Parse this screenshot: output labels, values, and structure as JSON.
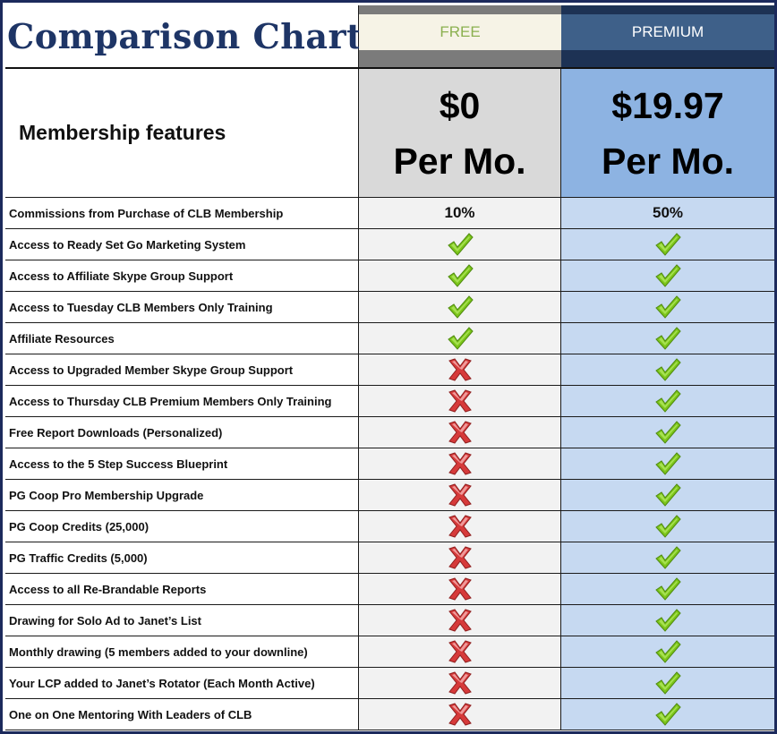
{
  "title": "Comparison Chart",
  "plans": {
    "free": {
      "name": "FREE",
      "price": "$0",
      "period": "Per Mo."
    },
    "premium": {
      "name": "PREMIUM",
      "price": "$19.97",
      "period": "Per Mo."
    }
  },
  "features_heading": "Membership features",
  "colors": {
    "title": "#1e3566",
    "free_label": "#8bb050",
    "free_price_bg": "#d9d9d9",
    "premium_price_bg": "#8db3e2",
    "premium_cell_bg": "#c6d9f1",
    "check": "#7cc51a",
    "cross": "#d63a3a"
  },
  "rows": [
    {
      "feature": "Commissions from Purchase of CLB Membership",
      "free": "10%",
      "premium": "50%"
    },
    {
      "feature": "Access to Ready Set Go Marketing System",
      "free": "check-icon",
      "premium": "check-icon"
    },
    {
      "feature": "Access to Affiliate Skype Group Support",
      "free": "check-icon",
      "premium": "check-icon"
    },
    {
      "feature": "Access to Tuesday CLB Members Only Training",
      "free": "check-icon",
      "premium": "check-icon"
    },
    {
      "feature": "Affiliate Resources",
      "free": "check-icon",
      "premium": "check-icon"
    },
    {
      "feature": "Access to Upgraded Member Skype Group Support",
      "free": "cross-icon",
      "premium": "check-icon"
    },
    {
      "feature": "Access to Thursday CLB Premium Members Only Training",
      "free": "cross-icon",
      "premium": "check-icon"
    },
    {
      "feature": "Free Report Downloads (Personalized)",
      "free": "cross-icon",
      "premium": "check-icon"
    },
    {
      "feature": "Access to the 5 Step Success Blueprint",
      "free": "cross-icon",
      "premium": "check-icon"
    },
    {
      "feature": "PG Coop Pro Membership Upgrade",
      "free": "cross-icon",
      "premium": "check-icon"
    },
    {
      "feature": "PG Coop Credits (25,000)",
      "free": "cross-icon",
      "premium": "check-icon"
    },
    {
      "feature": "PG Traffic Credits (5,000)",
      "free": "cross-icon",
      "premium": "check-icon"
    },
    {
      "feature": "Access to all Re-Brandable Reports",
      "free": "cross-icon",
      "premium": "check-icon"
    },
    {
      "feature": "Drawing for Solo Ad to Janet’s List",
      "free": "cross-icon",
      "premium": "check-icon"
    },
    {
      "feature": "Monthly drawing (5 members added to your downline)",
      "free": "cross-icon",
      "premium": "check-icon"
    },
    {
      "feature": "Your LCP added to Janet’s Rotator (Each Month Active)",
      "free": "cross-icon",
      "premium": "check-icon"
    },
    {
      "feature": "One on One Mentoring With Leaders of CLB",
      "free": "cross-icon",
      "premium": "check-icon"
    }
  ]
}
